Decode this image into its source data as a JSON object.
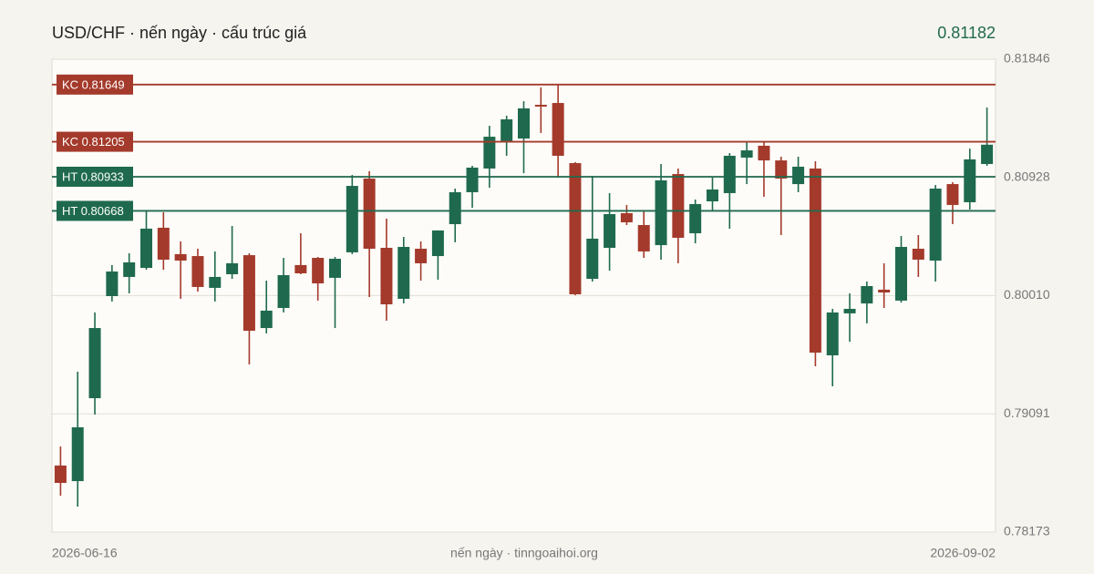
{
  "chart_data": {
    "type": "candlestick",
    "title": "USD/CHF · nến ngày · cấu trúc giá",
    "last_price": 0.81182,
    "footer": "nến ngày · tinngoaihoi.org",
    "up_color": "#1f6a4e",
    "down_color": "#a43a2b",
    "categories": [
      "2026-06-16",
      null,
      null,
      null,
      null,
      null,
      null,
      null,
      null,
      null,
      null,
      null,
      null,
      null,
      null,
      null,
      null,
      null,
      null,
      null,
      null,
      null,
      null,
      null,
      null,
      null,
      null,
      null,
      null,
      null,
      null,
      null,
      null,
      null,
      null,
      null,
      null,
      null,
      null,
      null,
      null,
      null,
      null,
      null,
      null,
      null,
      null,
      null,
      null,
      null,
      null,
      null,
      null,
      null,
      "2026-09-02"
    ],
    "open": [
      0.7869,
      0.78569,
      0.79213,
      0.80006,
      0.80155,
      0.80225,
      0.80537,
      0.80332,
      0.80317,
      0.8007,
      0.80176,
      0.80324,
      0.79758,
      0.79914,
      0.80247,
      0.80303,
      0.80148,
      0.80346,
      0.80919,
      0.80381,
      0.79985,
      0.80374,
      0.80317,
      0.80565,
      0.80813,
      0.80997,
      0.81209,
      0.8123,
      0.81492,
      0.81506,
      0.81039,
      0.8014,
      0.80381,
      0.8065,
      0.80558,
      0.80402,
      0.80954,
      0.80494,
      0.80742,
      0.80806,
      0.81082,
      0.81174,
      0.8106,
      0.80876,
      0.80997,
      0.79546,
      0.79872,
      0.79949,
      0.80056,
      0.79971,
      0.80374,
      0.80282,
      0.80876,
      0.80735,
      0.81032
    ],
    "high": [
      0.78838,
      0.79419,
      0.79879,
      0.80247,
      0.80339,
      0.80664,
      0.80657,
      0.80431,
      0.80374,
      0.80353,
      0.80551,
      0.80339,
      0.80126,
      0.80303,
      0.80494,
      0.8031,
      0.8031,
      0.80947,
      0.80976,
      0.80608,
      0.80466,
      0.80431,
      0.80516,
      0.80841,
      0.81018,
      0.81329,
      0.81407,
      0.8152,
      0.81627,
      0.81655,
      0.81046,
      0.8094,
      0.80806,
      0.80714,
      0.80664,
      0.81032,
      0.80997,
      0.80756,
      0.80926,
      0.81117,
      0.81209,
      0.81209,
      0.81089,
      0.81089,
      0.81053,
      0.79907,
      0.80027,
      0.80119,
      0.80261,
      0.80473,
      0.8048,
      0.80869,
      0.80891,
      0.81152,
      0.81471
    ],
    "low": [
      0.78456,
      0.78371,
      0.79086,
      0.79964,
      0.80027,
      0.80211,
      0.80211,
      0.79985,
      0.80041,
      0.79964,
      0.8014,
      0.79475,
      0.79716,
      0.79879,
      0.80176,
      0.79971,
      0.79758,
      0.80332,
      0.79999,
      0.79815,
      0.79949,
      0.80126,
      0.80133,
      0.80424,
      0.80692,
      0.80848,
      0.81096,
      0.80961,
      0.81273,
      0.80926,
      0.80013,
      0.80119,
      0.80204,
      0.80558,
      0.80303,
      0.80289,
      0.80261,
      0.80416,
      0.80671,
      0.8053,
      0.80876,
      0.80777,
      0.8048,
      0.80813,
      0.79461,
      0.79305,
      0.79652,
      0.79794,
      0.79914,
      0.79956,
      0.80155,
      0.80119,
      0.80565,
      0.80678,
      0.81018
    ],
    "close": [
      0.78555,
      0.78987,
      0.79758,
      0.80197,
      0.80268,
      0.8053,
      0.80289,
      0.80282,
      0.80077,
      0.80155,
      0.80261,
      0.79737,
      0.79893,
      0.80169,
      0.80183,
      0.80105,
      0.80296,
      0.80862,
      0.80374,
      0.79942,
      0.80388,
      0.80261,
      0.80516,
      0.80813,
      0.81004,
      0.81244,
      0.81379,
      0.81464,
      0.81478,
      0.81096,
      0.8002,
      0.80452,
      0.80643,
      0.80579,
      0.80353,
      0.80905,
      0.80459,
      0.80721,
      0.80834,
      0.81096,
      0.81138,
      0.8106,
      0.80919,
      0.81011,
      0.79567,
      0.79879,
      0.79907,
      0.80084,
      0.80034,
      0.80388,
      0.80289,
      0.80841,
      0.80714,
      0.81068,
      0.81182
    ],
    "levels": [
      {
        "value": 0.81649,
        "label": "KC 0.81649",
        "color": "#a43a2b"
      },
      {
        "value": 0.81205,
        "label": "KC 0.81205",
        "color": "#a43a2b"
      },
      {
        "value": 0.80933,
        "label": "HT 0.80933",
        "color": "#1f6a4e"
      },
      {
        "value": 0.80668,
        "label": "HT 0.80668",
        "color": "#1f6a4e"
      }
    ],
    "ylim": [
      0.78173,
      0.81846
    ],
    "yticks": [
      0.78173,
      0.79091,
      {
        "value": 0.8001,
        "label": "0.80010"
      },
      0.80928,
      0.81846
    ],
    "grid": true
  }
}
